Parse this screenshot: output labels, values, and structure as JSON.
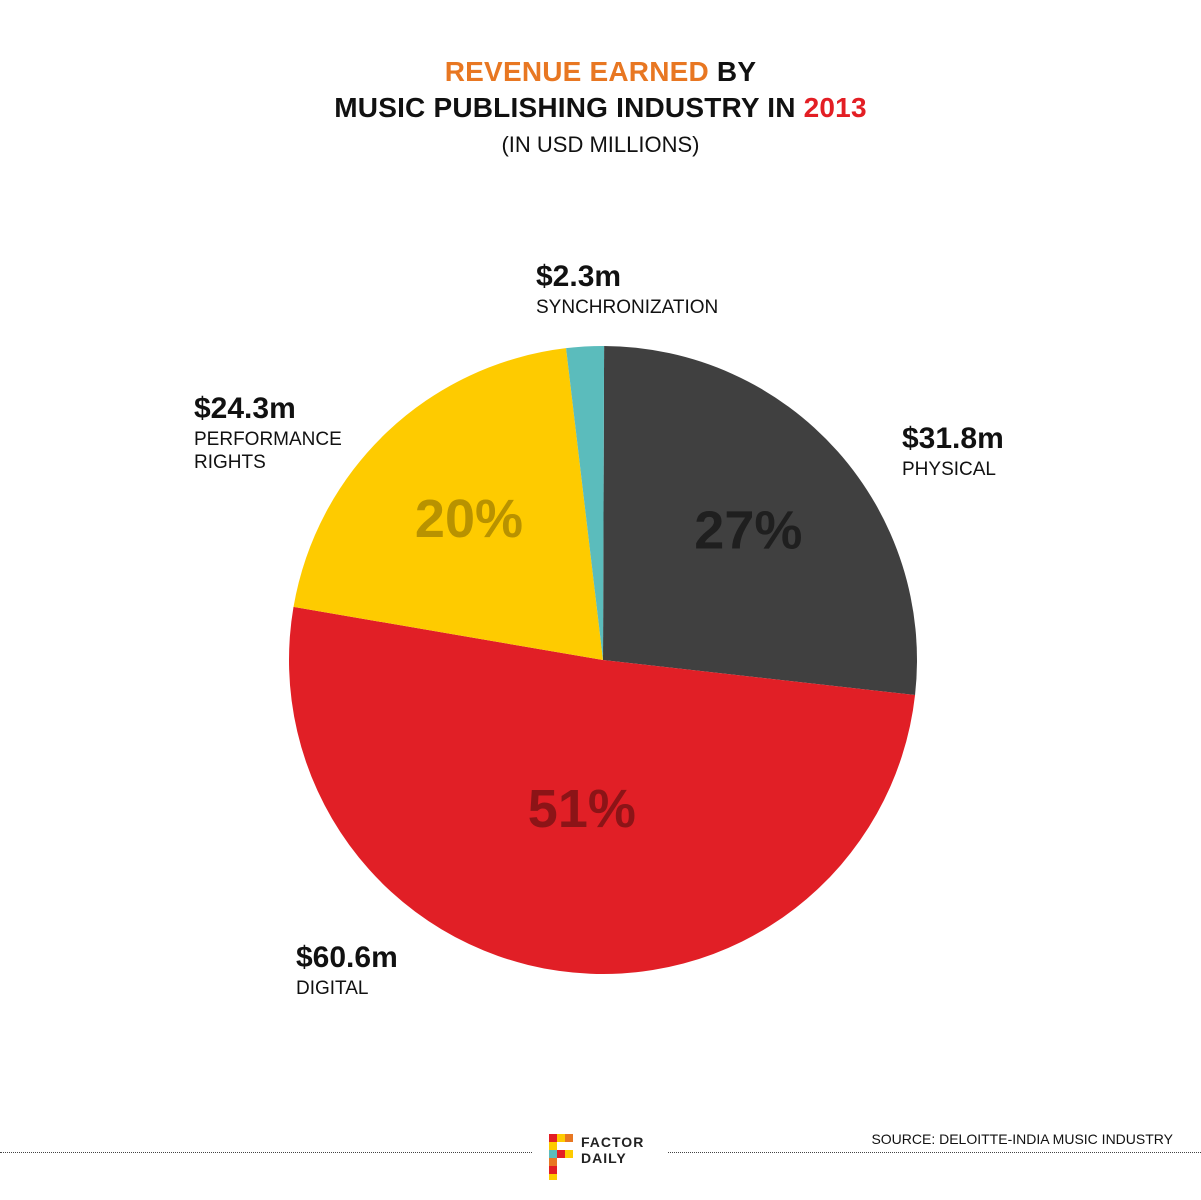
{
  "header": {
    "title_part1": "REVENUE EARNED",
    "title_part2": " BY",
    "title_part3": "MUSIC PUBLISHING INDUSTRY IN ",
    "title_part4": "2013",
    "subtitle": "(IN USD MILLIONS)",
    "accent_orange": "#e87722",
    "accent_red": "#e31e24"
  },
  "chart_data": {
    "type": "pie",
    "title": "REVENUE EARNED BY MUSIC PUBLISHING INDUSTRY IN 2013",
    "subtitle": "(IN USD MILLIONS)",
    "slices": [
      {
        "name": "PHYSICAL",
        "value": 31.8,
        "value_label": "$31.8m",
        "percent_label": "27%",
        "color": "#404040",
        "pct_color": "#1f1f1f"
      },
      {
        "name": "DIGITAL",
        "value": 60.6,
        "value_label": "$60.6m",
        "percent_label": "51%",
        "color": "#e11f26",
        "pct_color": "#8c1417"
      },
      {
        "name": "PERFORMANCE RIGHTS",
        "value": 24.3,
        "value_label": "$24.3m",
        "percent_label": "20%",
        "color": "#fecb00",
        "pct_color": "#b89200"
      },
      {
        "name": "SYNCHRONIZATION",
        "value": 2.3,
        "value_label": "$2.3m",
        "percent_label": "",
        "color": "#5bbcbc",
        "pct_color": "#3a8a8a"
      }
    ]
  },
  "callouts": {
    "sync": {
      "value": "$2.3m",
      "label": "SYNCHRONIZATION"
    },
    "physical": {
      "value": "$31.8m",
      "label": "PHYSICAL"
    },
    "performance": {
      "value": "$24.3m",
      "label1": "PERFORMANCE",
      "label2": "RIGHTS"
    },
    "digital": {
      "value": "$60.6m",
      "label": "DIGITAL"
    }
  },
  "footer": {
    "logo_line1": "FACTOR",
    "logo_line2": "DAILY",
    "source": "SOURCE: DELOITTE-INDIA MUSIC INDUSTRY"
  }
}
